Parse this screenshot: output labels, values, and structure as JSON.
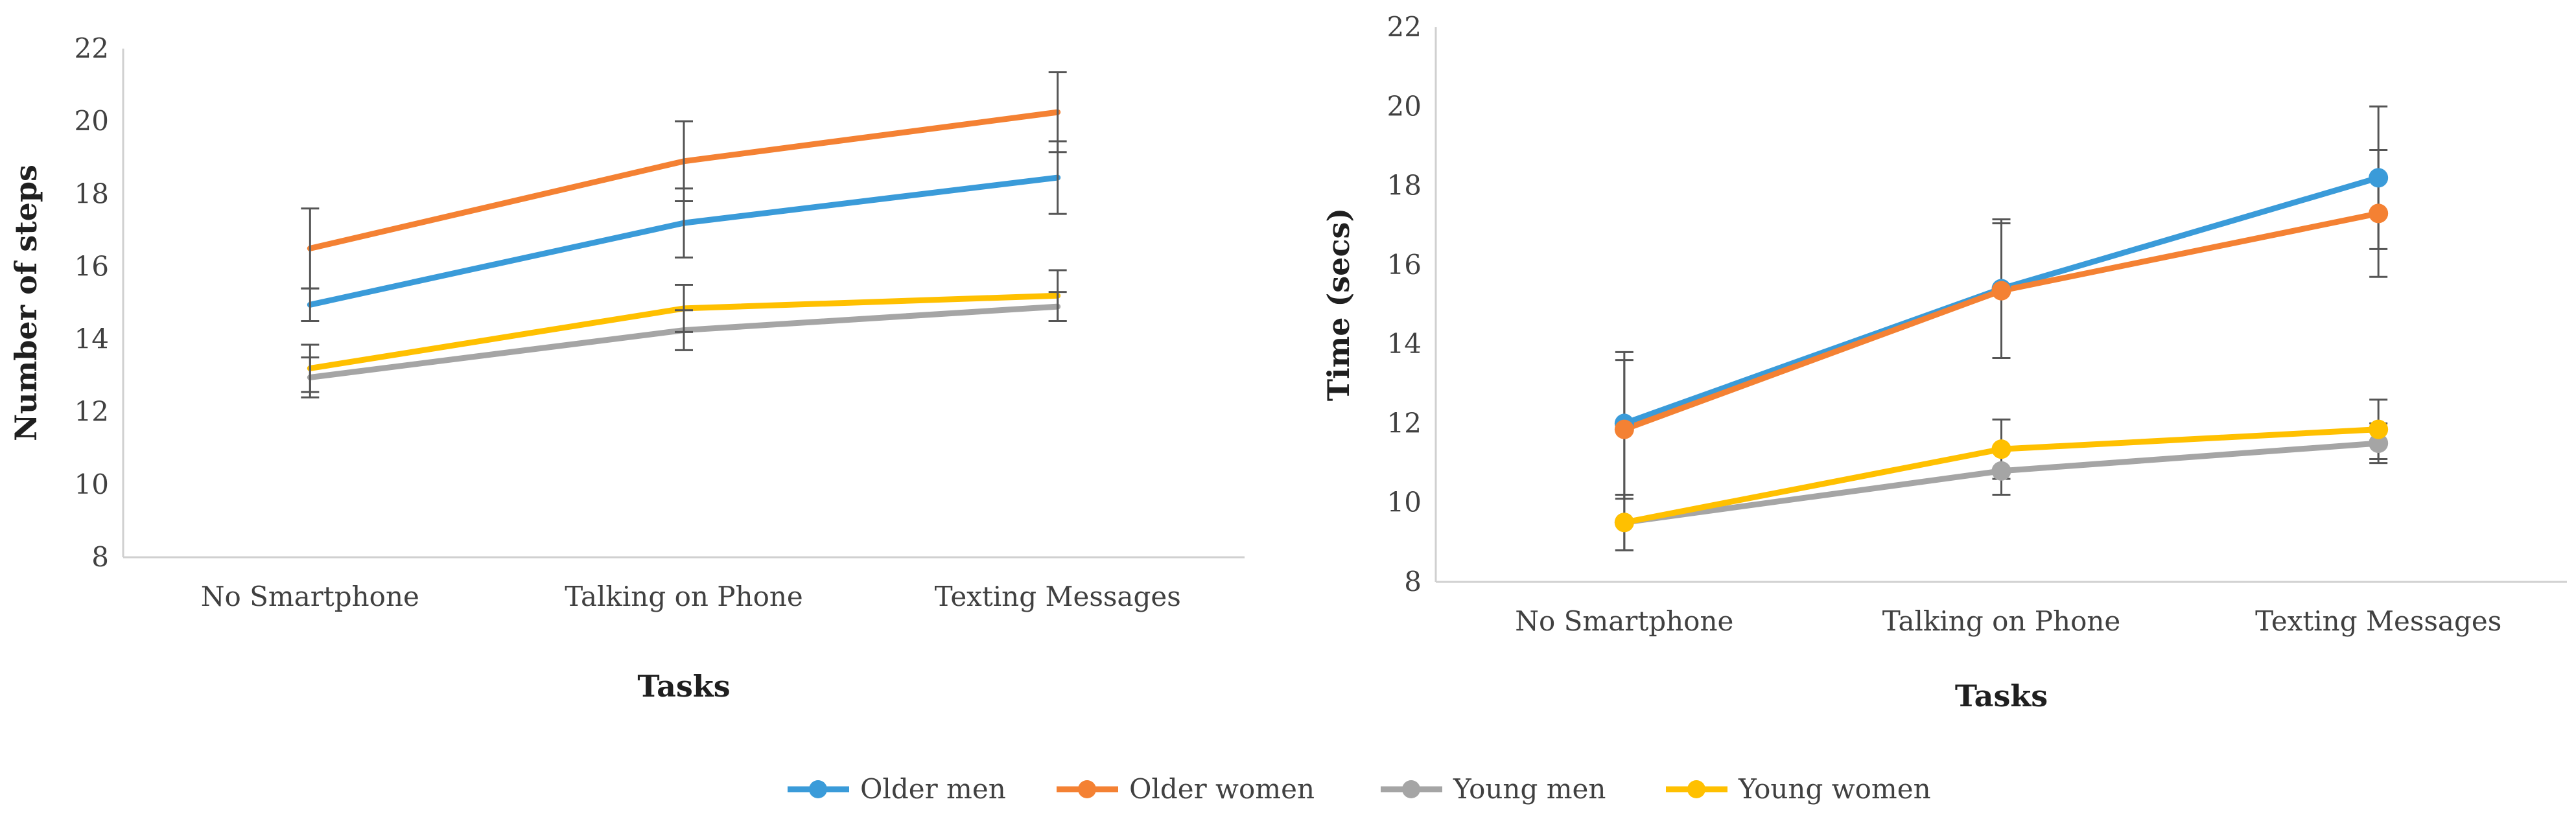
{
  "chart_data": [
    {
      "type": "line",
      "categories": [
        "No Smartphone",
        "Talking on Phone",
        "Texting Messages"
      ],
      "xlabel": "Tasks",
      "ylabel": "Number of steps",
      "ylim": [
        8,
        22
      ],
      "yticks": [
        8,
        10,
        12,
        14,
        16,
        18,
        20,
        22
      ],
      "markers": false,
      "series": [
        {
          "name": "Older men",
          "color": "#3A9BD9",
          "values": [
            14.95,
            17.2,
            18.45
          ],
          "errors": [
            0.45,
            0.95,
            1.0
          ]
        },
        {
          "name": "Older women",
          "color": "#F48133",
          "values": [
            16.5,
            18.9,
            20.25
          ],
          "errors": [
            1.1,
            1.1,
            1.1
          ]
        },
        {
          "name": "Young men",
          "color": "#A5A5A5",
          "values": [
            12.95,
            14.25,
            14.9
          ],
          "errors": [
            0.55,
            0.55,
            0.4
          ]
        },
        {
          "name": "Young women",
          "color": "#FFC000",
          "values": [
            13.2,
            14.85,
            15.2
          ],
          "errors": [
            0.65,
            0.65,
            0.7
          ]
        }
      ]
    },
    {
      "type": "line",
      "categories": [
        "No Smartphone",
        "Talking on Phone",
        "Texting Messages"
      ],
      "xlabel": "Tasks",
      "ylabel": "Time (secs)",
      "ylim": [
        8,
        22
      ],
      "yticks": [
        8,
        10,
        12,
        14,
        16,
        18,
        20,
        22
      ],
      "markers": true,
      "series": [
        {
          "name": "Older men",
          "color": "#3A9BD9",
          "values": [
            12.0,
            15.4,
            18.2
          ],
          "errors": [
            1.8,
            1.75,
            1.8
          ]
        },
        {
          "name": "Older women",
          "color": "#F48133",
          "values": [
            11.85,
            15.35,
            17.3
          ],
          "errors": [
            1.75,
            1.7,
            1.6
          ]
        },
        {
          "name": "Young men",
          "color": "#A5A5A5",
          "values": [
            9.5,
            10.8,
            11.5
          ],
          "errors": [
            0.7,
            0.6,
            0.5
          ]
        },
        {
          "name": "Young women",
          "color": "#FFC000",
          "values": [
            9.5,
            11.35,
            11.85
          ],
          "errors": [
            0.7,
            0.75,
            0.75
          ]
        }
      ]
    }
  ],
  "legend": {
    "position": "bottom",
    "items": [
      {
        "name": "Older men",
        "color": "#3A9BD9"
      },
      {
        "name": "Older women",
        "color": "#F48133"
      },
      {
        "name": "Young men",
        "color": "#A5A5A5"
      },
      {
        "name": "Young women",
        "color": "#FFC000"
      }
    ]
  }
}
